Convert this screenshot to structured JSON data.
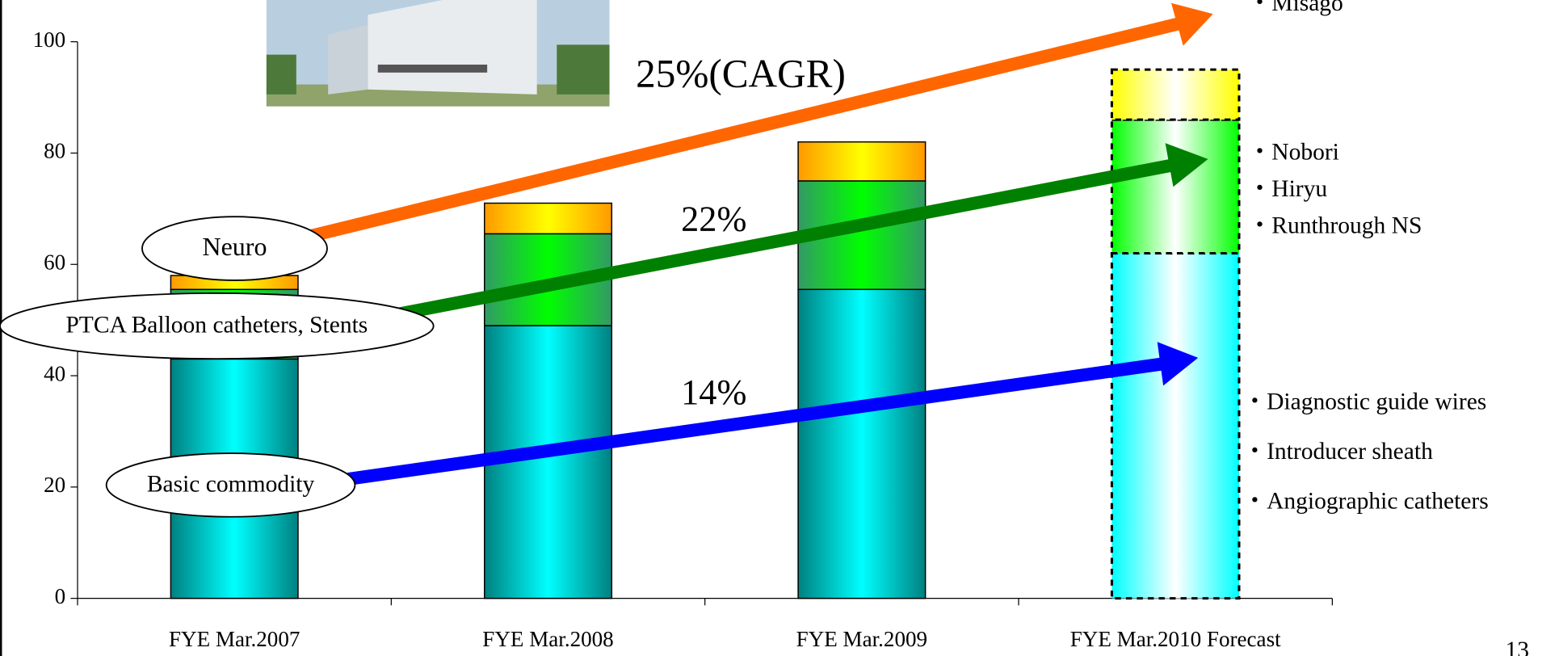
{
  "chart_data": {
    "type": "stacked_bar",
    "categories": [
      "FYE Mar.2007",
      "FYE Mar.2008",
      "FYE Mar.2009",
      "FYE Mar.2010 Forecast"
    ],
    "series": [
      {
        "name": "Basic commodity",
        "color": "#008080",
        "highlight": "#00ffff",
        "values": [
          43,
          49,
          55.5,
          62
        ]
      },
      {
        "name": "PTCA Balloon catheters, Stents",
        "color": "#339966",
        "highlight": "#00ff00",
        "values": [
          12.5,
          16.5,
          19.5,
          24
        ]
      },
      {
        "name": "Neuro",
        "color": "#ff9900",
        "highlight": "#ffff00",
        "values": [
          2.5,
          5.5,
          7,
          9
        ]
      }
    ],
    "dashed": [
      false,
      false,
      false,
      true
    ],
    "ylim": [
      0,
      100
    ],
    "yticks": [
      0,
      20,
      40,
      60,
      80,
      100
    ],
    "growth": [
      "14%",
      "22%",
      "25%(CAGR)"
    ],
    "products": {
      "neuro": [
        "・Misago"
      ],
      "ptca": [
        "・Nobori",
        "・Hiryu",
        "・Runthrough NS"
      ],
      "basic": [
        "・Diagnostic guide wires",
        "・Introducer sheath",
        "・Angiographic catheters"
      ]
    },
    "page_number": "13"
  }
}
